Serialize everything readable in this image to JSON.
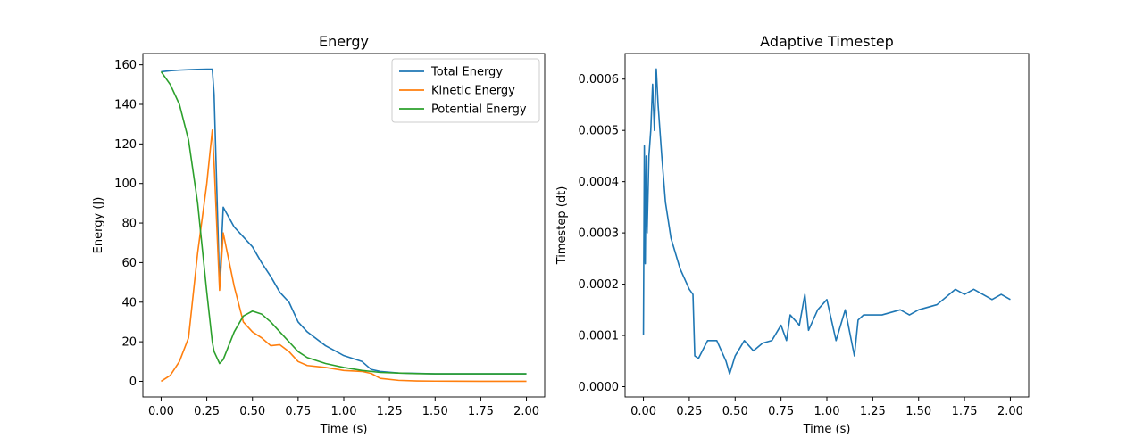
{
  "chart_data": [
    {
      "type": "line",
      "title": "Energy",
      "xlabel": "Time (s)",
      "ylabel": "Energy (J)",
      "x": [
        0,
        0.05,
        0.1,
        0.15,
        0.2,
        0.25,
        0.28,
        0.29,
        0.32,
        0.34,
        0.4,
        0.45,
        0.5,
        0.55,
        0.6,
        0.65,
        0.7,
        0.75,
        0.8,
        0.9,
        1.0,
        1.1,
        1.15,
        1.2,
        1.3,
        1.4,
        1.5,
        1.75,
        2.0
      ],
      "series": [
        {
          "name": "Total Energy",
          "color": "#1f77b4",
          "values": [
            156.5,
            157,
            157.3,
            157.5,
            157.7,
            157.8,
            157.8,
            145,
            48,
            88,
            78,
            73,
            68,
            60,
            53,
            45,
            40,
            30,
            25,
            18,
            13,
            10,
            6,
            5,
            4.2,
            4,
            3.8,
            3.8,
            3.8
          ]
        },
        {
          "name": "Kinetic Energy",
          "color": "#ff7f0e",
          "values": [
            0,
            3,
            10,
            22,
            65,
            100,
            127,
            110,
            46,
            75,
            48,
            30,
            25,
            22,
            18,
            18.5,
            15,
            10,
            8,
            7,
            5.5,
            5,
            4,
            1.5,
            0.5,
            0.2,
            0.1,
            0,
            0
          ]
        },
        {
          "name": "Potential Energy",
          "color": "#2ca02c",
          "values": [
            156.5,
            150,
            140,
            122,
            90,
            45,
            20,
            15,
            9,
            11,
            25,
            33,
            35.5,
            34,
            30,
            25,
            20,
            15,
            12,
            9,
            7,
            5.5,
            5,
            4.5,
            4.2,
            3.9,
            3.8,
            3.8,
            3.8
          ]
        }
      ],
      "xlim": [
        -0.1,
        2.1
      ],
      "ylim": [
        -7.9,
        165.7
      ],
      "xticks": [
        {
          "value": 0,
          "label": "0.00"
        },
        {
          "value": 0.25,
          "label": "0.25"
        },
        {
          "value": 0.5,
          "label": "0.50"
        },
        {
          "value": 0.75,
          "label": "0.75"
        },
        {
          "value": 1,
          "label": "1.00"
        },
        {
          "value": 1.25,
          "label": "1.25"
        },
        {
          "value": 1.5,
          "label": "1.50"
        },
        {
          "value": 1.75,
          "label": "1.75"
        },
        {
          "value": 2,
          "label": "2.00"
        }
      ],
      "yticks": [
        0,
        20,
        40,
        60,
        80,
        100,
        120,
        140,
        160
      ],
      "legend": "upper right"
    },
    {
      "type": "line",
      "title": "Adaptive Timestep",
      "xlabel": "Time (s)",
      "ylabel": "Timestep (dt)",
      "x": [
        0,
        0.005,
        0.01,
        0.015,
        0.02,
        0.03,
        0.04,
        0.05,
        0.06,
        0.07,
        0.08,
        0.1,
        0.12,
        0.15,
        0.2,
        0.25,
        0.27,
        0.28,
        0.3,
        0.35,
        0.4,
        0.45,
        0.47,
        0.5,
        0.55,
        0.6,
        0.65,
        0.7,
        0.75,
        0.78,
        0.8,
        0.85,
        0.88,
        0.9,
        0.95,
        1.0,
        1.05,
        1.1,
        1.15,
        1.17,
        1.2,
        1.3,
        1.4,
        1.45,
        1.5,
        1.6,
        1.7,
        1.75,
        1.8,
        1.85,
        1.9,
        1.95,
        2.0
      ],
      "series": [
        {
          "color": "#1f77b4",
          "values": [
            0.0001,
            0.00047,
            0.00024,
            0.00045,
            0.0003,
            0.00045,
            0.0005,
            0.00059,
            0.0005,
            0.00062,
            0.00055,
            0.00045,
            0.00036,
            0.00029,
            0.00023,
            0.00019,
            0.00018,
            6e-05,
            5.5e-05,
            9e-05,
            9e-05,
            5e-05,
            2.5e-05,
            6e-05,
            9e-05,
            7e-05,
            8.5e-05,
            9e-05,
            0.00012,
            9e-05,
            0.00014,
            0.00012,
            0.00018,
            0.00011,
            0.00015,
            0.00017,
            9e-05,
            0.00015,
            6e-05,
            0.00013,
            0.00014,
            0.00014,
            0.00015,
            0.00014,
            0.00015,
            0.00016,
            0.00019,
            0.00018,
            0.00019,
            0.00018,
            0.00017,
            0.00018,
            0.00017
          ]
        }
      ],
      "xlim": [
        -0.1,
        2.1
      ],
      "ylim": [
        -2e-05,
        0.00065
      ],
      "xticks": [
        {
          "value": 0,
          "label": "0.00"
        },
        {
          "value": 0.25,
          "label": "0.25"
        },
        {
          "value": 0.5,
          "label": "0.50"
        },
        {
          "value": 0.75,
          "label": "0.75"
        },
        {
          "value": 1,
          "label": "1.00"
        },
        {
          "value": 1.25,
          "label": "1.25"
        },
        {
          "value": 1.5,
          "label": "1.50"
        },
        {
          "value": 1.75,
          "label": "1.75"
        },
        {
          "value": 2,
          "label": "2.00"
        }
      ],
      "yticks": [
        {
          "value": 0,
          "label": "0.0000"
        },
        {
          "value": 0.0001,
          "label": "0.0001"
        },
        {
          "value": 0.0002,
          "label": "0.0002"
        },
        {
          "value": 0.0003,
          "label": "0.0003"
        },
        {
          "value": 0.0004,
          "label": "0.0004"
        },
        {
          "value": 0.0005,
          "label": "0.0005"
        },
        {
          "value": 0.0006,
          "label": "0.0006"
        }
      ]
    }
  ]
}
